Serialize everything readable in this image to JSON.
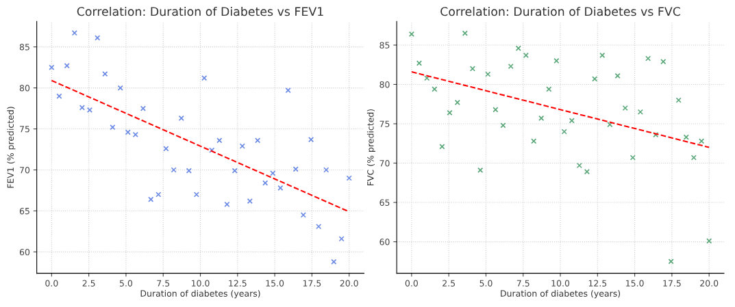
{
  "chart_data": [
    {
      "type": "scatter",
      "title": "Correlation: Duration of Diabetes vs FEV1",
      "xlabel": "Duration of diabetes (years)",
      "ylabel": "FEV1 (% predicted)",
      "grid": true,
      "xlim": [
        -1,
        21
      ],
      "ylim": [
        57.4,
        88.1
      ],
      "xticks": [
        {
          "value": 0,
          "label": "0.0"
        },
        {
          "value": 2.5,
          "label": "2.5"
        },
        {
          "value": 5,
          "label": "5.0"
        },
        {
          "value": 7.5,
          "label": "7.5"
        },
        {
          "value": 10,
          "label": "10.0"
        },
        {
          "value": 12.5,
          "label": "12.5"
        },
        {
          "value": 15,
          "label": "15.0"
        },
        {
          "value": 17.5,
          "label": "17.5"
        },
        {
          "value": 20,
          "label": "20.0"
        }
      ],
      "yticks": [
        60,
        65,
        70,
        75,
        80,
        85
      ],
      "series": [
        {
          "marker": "cross",
          "color": "#6b8ae6",
          "x": [
            0,
            0.51,
            1.03,
            1.54,
            2.05,
            2.56,
            3.08,
            3.59,
            4.1,
            4.62,
            5.13,
            5.64,
            6.15,
            6.67,
            7.18,
            7.69,
            8.21,
            8.72,
            9.23,
            9.74,
            10.26,
            10.77,
            11.28,
            11.79,
            12.31,
            12.82,
            13.33,
            13.85,
            14.36,
            14.87,
            15.38,
            15.9,
            16.41,
            16.92,
            17.44,
            17.95,
            18.46,
            18.97,
            19.49,
            20
          ],
          "values": [
            82.5,
            79.0,
            82.7,
            86.7,
            77.6,
            77.3,
            86.1,
            81.7,
            75.2,
            80.0,
            74.6,
            74.3,
            77.5,
            66.4,
            67.0,
            72.6,
            70.0,
            76.3,
            69.9,
            67.0,
            81.2,
            72.4,
            73.6,
            65.8,
            69.9,
            72.9,
            66.2,
            73.6,
            68.4,
            69.6,
            67.8,
            79.7,
            70.1,
            64.5,
            73.7,
            63.1,
            70.0,
            58.8,
            61.6,
            69.0
          ]
        },
        {
          "type": "line",
          "color": "#ff0000",
          "line_style": "dashed",
          "x": [
            0,
            20
          ],
          "values": [
            80.9,
            64.9
          ]
        }
      ]
    },
    {
      "type": "scatter",
      "title": "Correlation: Duration of Diabetes vs FVC",
      "xlabel": "Duration of diabetes (years)",
      "ylabel": "FVC (% predicted)",
      "grid": true,
      "xlim": [
        -1,
        21
      ],
      "ylim": [
        56.0,
        88.0
      ],
      "xticks": [
        {
          "value": 0,
          "label": "0.0"
        },
        {
          "value": 2.5,
          "label": "2.5"
        },
        {
          "value": 5,
          "label": "5.0"
        },
        {
          "value": 7.5,
          "label": "7.5"
        },
        {
          "value": 10,
          "label": "10.0"
        },
        {
          "value": 12.5,
          "label": "12.5"
        },
        {
          "value": 15,
          "label": "15.0"
        },
        {
          "value": 17.5,
          "label": "17.5"
        },
        {
          "value": 20,
          "label": "20.0"
        }
      ],
      "yticks": [
        60,
        65,
        70,
        75,
        80,
        85
      ],
      "series": [
        {
          "marker": "cross",
          "color": "#5aa77a",
          "x": [
            0,
            0.51,
            1.03,
            1.54,
            2.05,
            2.56,
            3.08,
            3.59,
            4.1,
            4.62,
            5.13,
            5.64,
            6.15,
            6.67,
            7.18,
            7.69,
            8.21,
            8.72,
            9.23,
            9.74,
            10.26,
            10.77,
            11.28,
            11.79,
            12.31,
            12.82,
            13.33,
            13.85,
            14.36,
            14.87,
            15.38,
            15.9,
            16.41,
            16.92,
            17.44,
            17.95,
            18.46,
            18.97,
            19.49,
            20
          ],
          "values": [
            86.4,
            82.7,
            80.8,
            79.4,
            72.1,
            76.4,
            77.7,
            86.5,
            82.0,
            69.1,
            81.3,
            76.8,
            74.8,
            82.3,
            84.6,
            83.7,
            72.8,
            75.7,
            79.4,
            83.0,
            74.0,
            75.4,
            69.7,
            68.9,
            80.7,
            83.7,
            74.9,
            81.1,
            77.0,
            70.7,
            76.5,
            83.3,
            73.6,
            82.9,
            57.5,
            78.0,
            73.3,
            70.7,
            72.8,
            60.1
          ]
        },
        {
          "type": "line",
          "color": "#ff0000",
          "line_style": "dashed",
          "x": [
            0,
            20
          ],
          "values": [
            81.6,
            72.0
          ]
        }
      ]
    }
  ]
}
